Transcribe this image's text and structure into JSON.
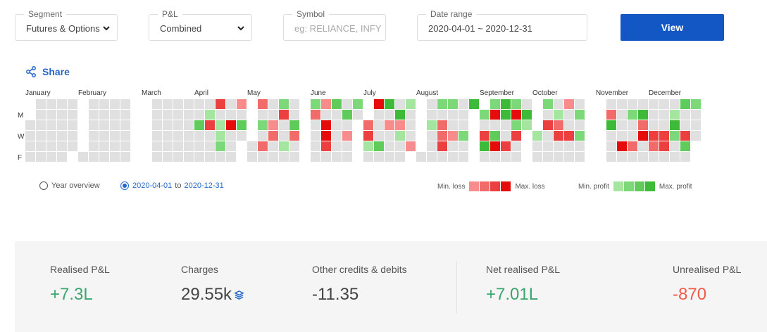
{
  "filters": {
    "segment": {
      "label": "Segment",
      "value": "Futures & Options"
    },
    "pnl": {
      "label": "P&L",
      "value": "Combined"
    },
    "symbol": {
      "label": "Symbol",
      "placeholder": "eg: RELIANCE, INFY"
    },
    "date_range": {
      "label": "Date range",
      "value": "2020-04-01 ~ 2020-12-31"
    },
    "view_button": "View"
  },
  "share_label": "Share",
  "months": [
    "January",
    "February",
    "March",
    "April",
    "May",
    "June",
    "July",
    "August",
    "September",
    "October",
    "November",
    "December"
  ],
  "day_labels": [
    "M",
    "W",
    "F"
  ],
  "colors": {
    "empty": "#e0e0e0",
    "loss": [
      "#f88c8c",
      "#f26b6b",
      "#ec4040",
      "#e60c0c"
    ],
    "profit": [
      "#a4e6a0",
      "#7dd87a",
      "#5ecb5a",
      "#3dba38"
    ],
    "accent": "#1257c3",
    "link": "#2667c9",
    "positive": "#3ba56f",
    "negative": "#f05a46"
  },
  "view_options": {
    "year": "Year overview",
    "range_from": "2020-04-01",
    "range_to_word": "to",
    "range_to": "2020-12-31",
    "selected": "range"
  },
  "legend": {
    "min_loss": "Min. loss",
    "max_loss": "Max. loss",
    "min_profit": "Min. profit",
    "max_profit": "Max. profit"
  },
  "summary": {
    "realised": {
      "label": "Realised P&L",
      "value": "+7.3L"
    },
    "charges": {
      "label": "Charges",
      "value": "29.55k"
    },
    "other": {
      "label": "Other credits & debits",
      "value": "-11.35"
    },
    "net": {
      "label": "Net realised P&L",
      "value": "+7.01L"
    },
    "unrealised": {
      "label": "Unrealised P&L",
      "value": "-870"
    }
  }
}
